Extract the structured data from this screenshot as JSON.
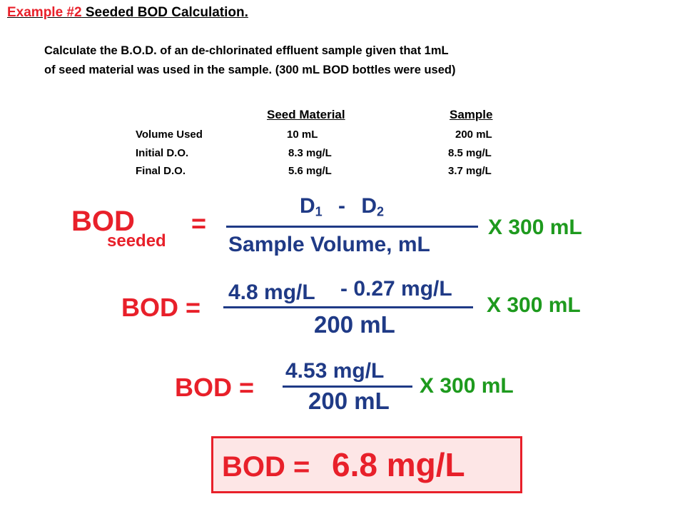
{
  "title": {
    "example_label": "Example #2",
    "example_text": " Seeded BOD Calculation."
  },
  "problem": {
    "line1": "Calculate the B.O.D. of an de-chlorinated effluent sample given that 1mL",
    "line2": "of seed material was used in the sample. (300 mL BOD bottles were used)"
  },
  "table": {
    "headers": [
      "Seed Material",
      "Sample"
    ],
    "rows": [
      {
        "label": "Volume Used",
        "seed": "10 mL",
        "sample": "200 mL"
      },
      {
        "label": "Initial D.O.",
        "seed": "8.3 mg/L",
        "sample": "8.5 mg/L"
      },
      {
        "label": "Final D.O.",
        "seed": "5.6 mg/L",
        "sample": "3.7 mg/L"
      }
    ]
  },
  "formula": {
    "bod": "BOD",
    "subscript": "seeded",
    "equals": "=",
    "d1": "D",
    "d1_sub": "1",
    "minus": "-",
    "d2": "D",
    "d2_sub": "2",
    "denominator": "Sample Volume, mL",
    "multiplier": "X 300 mL"
  },
  "step1": {
    "label": "BOD =",
    "num_a": "4.8 mg/L",
    "num_b": "- 0.27 mg/L",
    "denominator": "200 mL",
    "multiplier": "X 300 mL"
  },
  "step2": {
    "label": "BOD =",
    "numerator": "4.53 mg/L",
    "denominator": "200 mL",
    "multiplier": "X 300 mL"
  },
  "result": {
    "label": "BOD =",
    "value": "6.8 mg/L"
  },
  "colors": {
    "red": "#e8202a",
    "blue": "#1f3a86",
    "green": "#1e9a1e",
    "result_bg": "#fde6e6"
  }
}
